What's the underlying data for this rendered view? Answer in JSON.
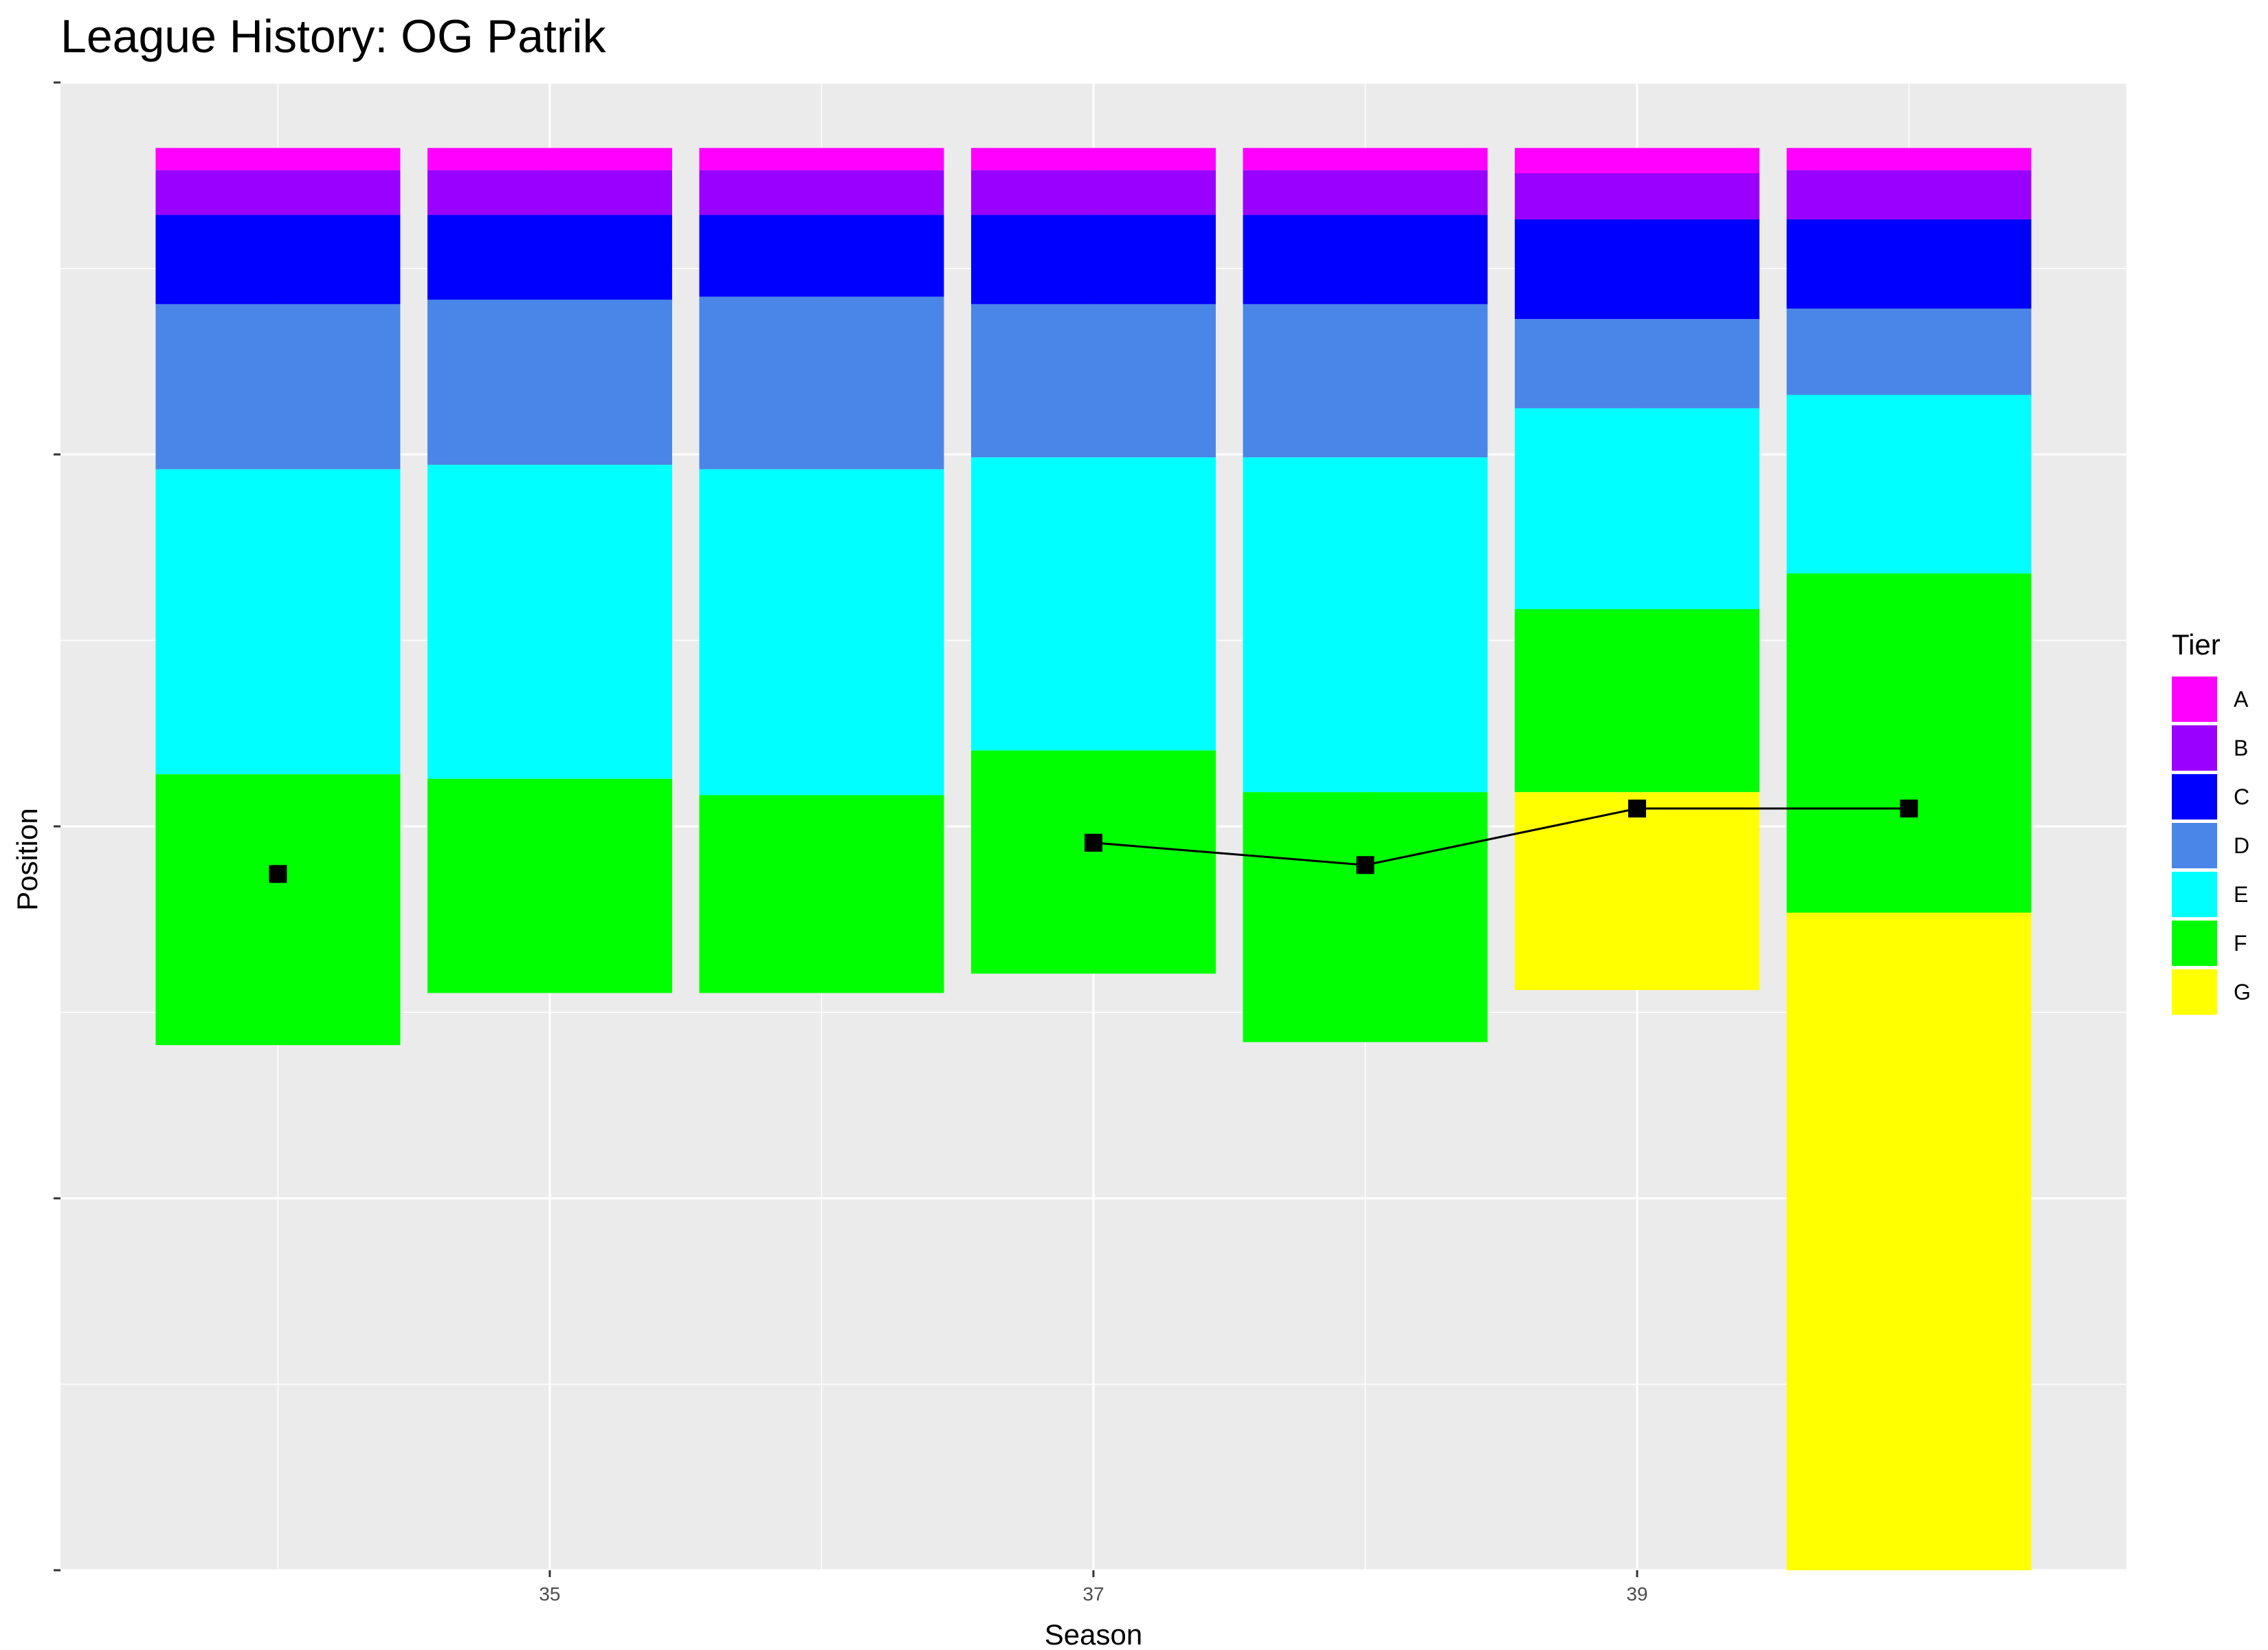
{
  "chart_data": {
    "type": "bar",
    "title": "League History: OG Patrik",
    "xlabel": "Season",
    "ylabel": "Position",
    "xlim": [
      33.2,
      40.8
    ],
    "ylim": [
      0,
      100
    ],
    "x_ticks": [
      35,
      37,
      39
    ],
    "grid": true,
    "legend": {
      "title": "Tier",
      "position": "right"
    },
    "tiers": [
      {
        "name": "A",
        "color": "#FF00FF"
      },
      {
        "name": "B",
        "color": "#9900FF"
      },
      {
        "name": "C",
        "color": "#0000FF"
      },
      {
        "name": "D",
        "color": "#4A86E8"
      },
      {
        "name": "E",
        "color": "#00FFFF"
      },
      {
        "name": "F",
        "color": "#00FF00"
      },
      {
        "name": "G",
        "color": "#FFFF00"
      }
    ],
    "bars": [
      {
        "season": 34,
        "segments": [
          {
            "tier": "A",
            "from": 95.6,
            "to": 94.1
          },
          {
            "tier": "B",
            "from": 94.1,
            "to": 91.1
          },
          {
            "tier": "C",
            "from": 91.1,
            "to": 85.1
          },
          {
            "tier": "D",
            "from": 85.1,
            "to": 74.0
          },
          {
            "tier": "E",
            "from": 74.0,
            "to": 53.5
          },
          {
            "tier": "F",
            "from": 53.5,
            "to": 35.3
          }
        ]
      },
      {
        "season": 35,
        "segments": [
          {
            "tier": "A",
            "from": 95.6,
            "to": 94.1
          },
          {
            "tier": "B",
            "from": 94.1,
            "to": 91.1
          },
          {
            "tier": "C",
            "from": 91.1,
            "to": 85.4
          },
          {
            "tier": "D",
            "from": 85.4,
            "to": 74.3
          },
          {
            "tier": "E",
            "from": 74.3,
            "to": 53.2
          },
          {
            "tier": "F",
            "from": 53.2,
            "to": 38.8
          }
        ]
      },
      {
        "season": 36,
        "segments": [
          {
            "tier": "A",
            "from": 95.6,
            "to": 94.1
          },
          {
            "tier": "B",
            "from": 94.1,
            "to": 91.1
          },
          {
            "tier": "C",
            "from": 91.1,
            "to": 85.6
          },
          {
            "tier": "D",
            "from": 85.6,
            "to": 74.0
          },
          {
            "tier": "E",
            "from": 74.0,
            "to": 52.1
          },
          {
            "tier": "F",
            "from": 52.1,
            "to": 38.8
          }
        ]
      },
      {
        "season": 37,
        "segments": [
          {
            "tier": "A",
            "from": 95.6,
            "to": 94.1
          },
          {
            "tier": "B",
            "from": 94.1,
            "to": 91.1
          },
          {
            "tier": "C",
            "from": 91.1,
            "to": 85.1
          },
          {
            "tier": "D",
            "from": 85.1,
            "to": 74.8
          },
          {
            "tier": "E",
            "from": 74.8,
            "to": 55.1
          },
          {
            "tier": "F",
            "from": 55.1,
            "to": 40.1
          }
        ]
      },
      {
        "season": 38,
        "segments": [
          {
            "tier": "A",
            "from": 95.6,
            "to": 94.1
          },
          {
            "tier": "B",
            "from": 94.1,
            "to": 91.1
          },
          {
            "tier": "C",
            "from": 91.1,
            "to": 85.1
          },
          {
            "tier": "D",
            "from": 85.1,
            "to": 74.8
          },
          {
            "tier": "E",
            "from": 74.8,
            "to": 52.3
          },
          {
            "tier": "F",
            "from": 52.3,
            "to": 35.5
          }
        ]
      },
      {
        "season": 39,
        "segments": [
          {
            "tier": "A",
            "from": 95.6,
            "to": 93.9
          },
          {
            "tier": "B",
            "from": 93.9,
            "to": 90.8
          },
          {
            "tier": "C",
            "from": 90.8,
            "to": 84.1
          },
          {
            "tier": "D",
            "from": 84.1,
            "to": 78.1
          },
          {
            "tier": "E",
            "from": 78.1,
            "to": 64.6
          },
          {
            "tier": "F",
            "from": 64.6,
            "to": 52.3
          },
          {
            "tier": "G",
            "from": 52.3,
            "to": 39.0
          }
        ]
      },
      {
        "season": 40,
        "segments": [
          {
            "tier": "A",
            "from": 95.6,
            "to": 94.1
          },
          {
            "tier": "B",
            "from": 94.1,
            "to": 90.8
          },
          {
            "tier": "C",
            "from": 90.8,
            "to": 84.8
          },
          {
            "tier": "D",
            "from": 84.8,
            "to": 79.0
          },
          {
            "tier": "E",
            "from": 79.0,
            "to": 67.0
          },
          {
            "tier": "F",
            "from": 67.0,
            "to": 44.2
          },
          {
            "tier": "G",
            "from": 44.2,
            "to": 0.0
          }
        ]
      }
    ],
    "position_line": {
      "color": "#000000",
      "points": [
        {
          "season": 34,
          "position": 46.8,
          "connected": false
        },
        {
          "season": 37,
          "position": 48.9,
          "connected": true
        },
        {
          "season": 38,
          "position": 47.4,
          "connected": true
        },
        {
          "season": 39,
          "position": 51.2,
          "connected": true
        },
        {
          "season": 40,
          "position": 51.2,
          "connected": true
        }
      ]
    }
  }
}
